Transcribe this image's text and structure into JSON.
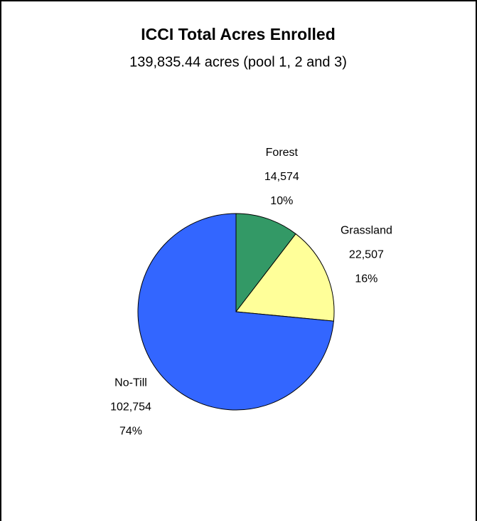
{
  "chart_data": {
    "type": "pie",
    "title": "ICCI Total Acres Enrolled",
    "subtitle": "139,835.44 acres (pool 1, 2 and 3)",
    "categories": [
      "Forest",
      "Grassland",
      "No-Till"
    ],
    "values": [
      14574,
      22507,
      102754
    ],
    "value_labels": [
      "14,574",
      "22,507",
      "102,754"
    ],
    "percent_labels": [
      "10%",
      "16%",
      "74%"
    ],
    "colors": [
      "#339966",
      "#ffff99",
      "#3366ff"
    ]
  }
}
